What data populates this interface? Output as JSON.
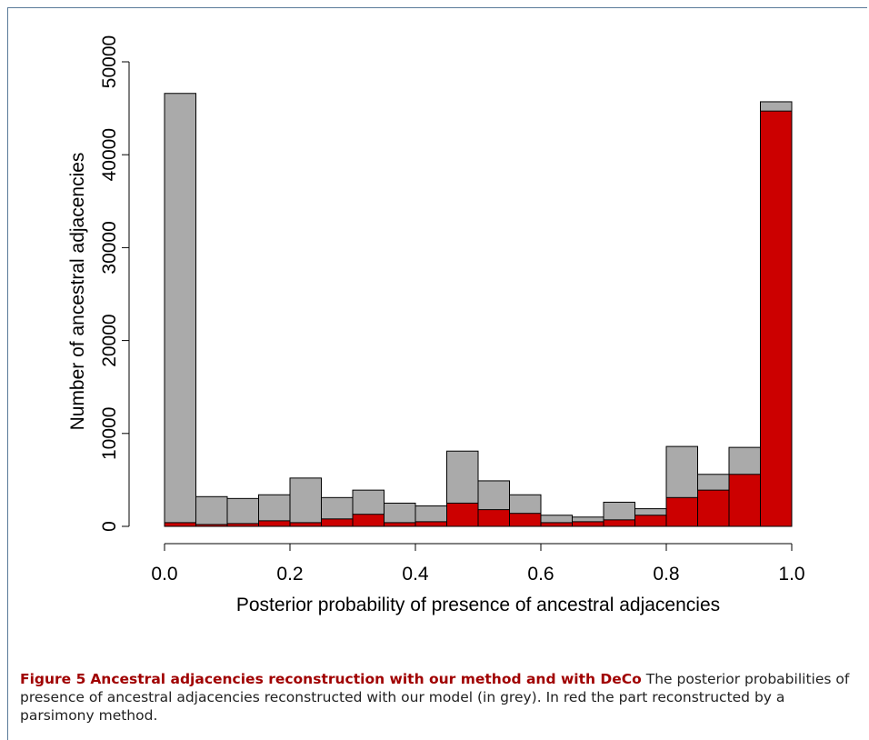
{
  "chart_data": {
    "type": "bar",
    "xlabel": "Posterior probability of presence of ancestral adjacencies",
    "ylabel": "Number of ancestral adjacencies",
    "xlim": [
      0,
      1
    ],
    "ylim": [
      0,
      50000
    ],
    "x_ticks": [
      "0.0",
      "0.2",
      "0.4",
      "0.6",
      "0.8",
      "1.0"
    ],
    "y_ticks": [
      "0",
      "10000",
      "20000",
      "30000",
      "40000",
      "50000"
    ],
    "bin_edges": [
      0,
      0.05,
      0.1,
      0.15,
      0.2,
      0.25,
      0.3,
      0.35,
      0.4,
      0.45,
      0.5,
      0.55,
      0.6,
      0.65,
      0.7,
      0.75,
      0.8,
      0.85,
      0.9,
      0.95,
      1.0
    ],
    "series": [
      {
        "name": "grey",
        "color": "#aaaaaa",
        "values": [
          46600,
          3200,
          3000,
          3400,
          5200,
          3100,
          3900,
          2500,
          2200,
          8100,
          4900,
          3400,
          1200,
          1000,
          2600,
          1900,
          8600,
          5600,
          8500,
          45700
        ]
      },
      {
        "name": "red",
        "color": "#cc0000",
        "values": [
          400,
          200,
          300,
          600,
          400,
          800,
          1300,
          400,
          500,
          2500,
          1800,
          1400,
          400,
          500,
          700,
          1200,
          3100,
          3900,
          5600,
          44700
        ]
      }
    ]
  },
  "caption": {
    "label": "Figure 5",
    "title": "Ancestral adjacencies reconstruction with our method and with DeCo",
    "body": "The posterior probabilities of presence of ancestral adjacencies reconstructed with our model (in grey). In red the part reconstructed by a parsimony method."
  }
}
